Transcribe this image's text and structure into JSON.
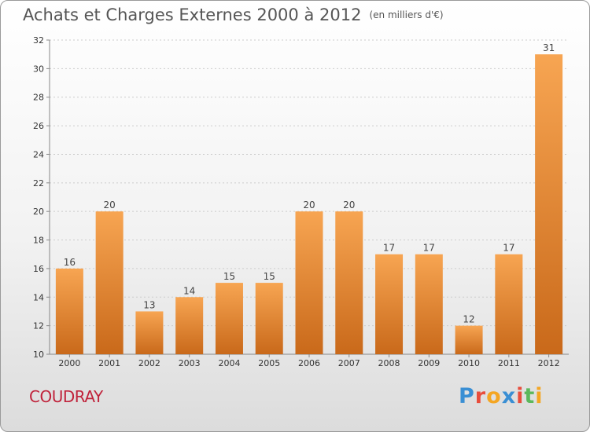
{
  "title": "Achats et Charges Externes 2000 à 2012",
  "unit": "(en milliers d'€)",
  "town": "COUDRAY",
  "logo": {
    "text": "Proxiti",
    "colors": [
      "#3a8fd4",
      "#e84d3c",
      "#f4a623",
      "#3a8fd4",
      "#e84d3c",
      "#5cb85c",
      "#f4a623"
    ]
  },
  "colors": {
    "bar_top": "#f7a552",
    "bar_bottom": "#c9691a",
    "grid": "#cccccc",
    "axis": "#888888",
    "town": "#c0243c"
  },
  "chart_data": {
    "type": "bar",
    "categories": [
      "2000",
      "2001",
      "2002",
      "2003",
      "2004",
      "2005",
      "2006",
      "2007",
      "2008",
      "2009",
      "2010",
      "2011",
      "2012"
    ],
    "values": [
      16,
      20,
      13,
      14,
      15,
      15,
      20,
      20,
      17,
      17,
      12,
      17,
      31
    ],
    "ylim": [
      10,
      32
    ],
    "yticks": [
      10,
      12,
      14,
      16,
      18,
      20,
      22,
      24,
      26,
      28,
      30,
      32
    ],
    "grid": true
  }
}
